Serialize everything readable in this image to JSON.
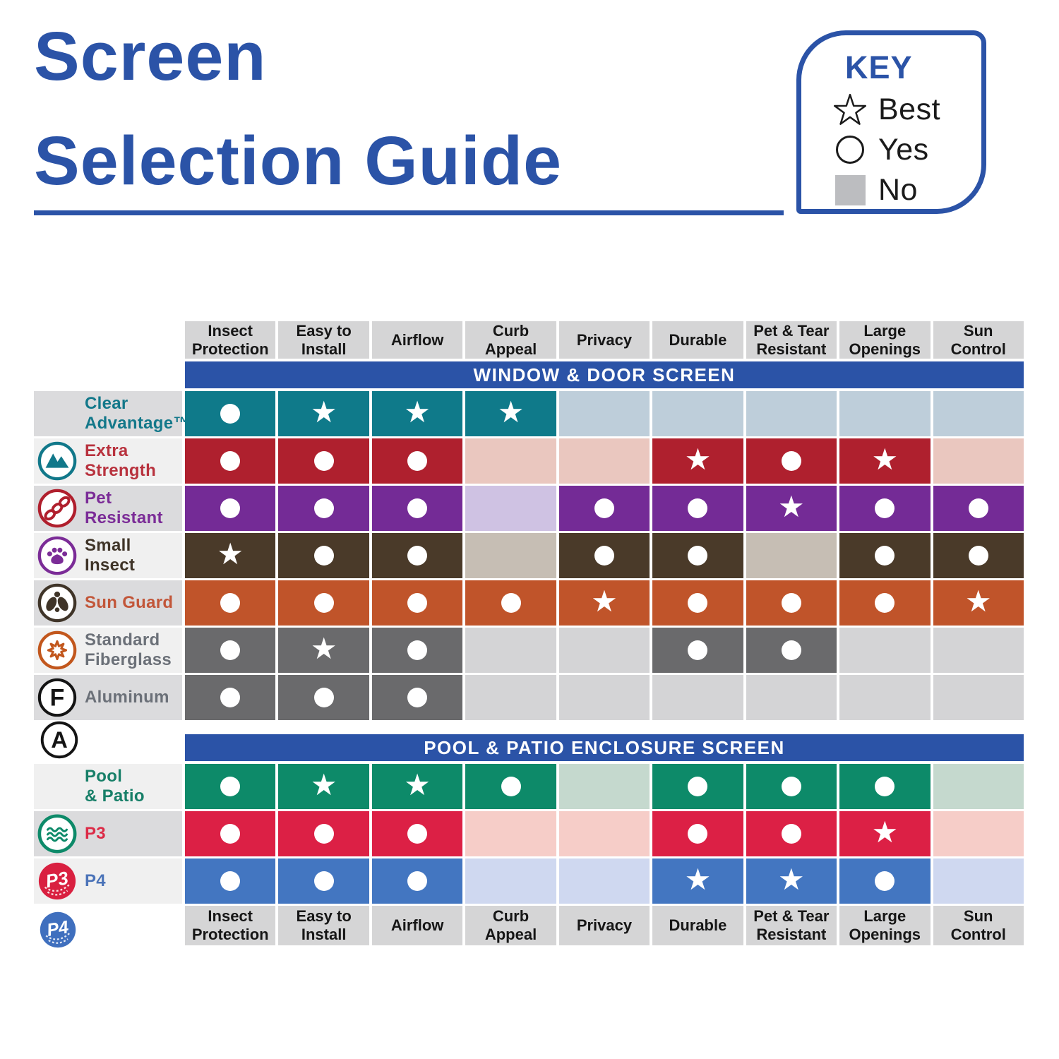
{
  "title": {
    "line1": "Screen",
    "line2": "Selection Guide"
  },
  "key": {
    "heading": "KEY",
    "items": [
      {
        "symbol": "star-outline",
        "label": "Best"
      },
      {
        "symbol": "circle-outline",
        "label": "Yes"
      },
      {
        "symbol": "gray-square",
        "label": "No"
      }
    ]
  },
  "icons": {
    "row_icons": {
      "extra-strength": "mountains",
      "pet-resistant": "chain-links",
      "small-insect": "paw-print",
      "sun-guard": "fly",
      "standard-fiberglass": "starburst",
      "aluminum": "letter-f",
      "p3": "water-waves",
      "p4": "p3-ball"
    },
    "floating": [
      "letter-a",
      "p4-ball"
    ],
    "cell_symbols": {
      "best": "white star",
      "yes": "white circle",
      "no": "tinted empty cell"
    }
  },
  "colors": {
    "brand_blue": "#2B53A7",
    "header_gray": "#D5D5D6",
    "key_square_gray": "#BCBDC0"
  },
  "chart_data": {
    "type": "table",
    "title": "Screen Selection Guide",
    "legend": {
      "star": "Best",
      "circle": "Yes",
      "gray_square": "No"
    },
    "columns": [
      "Insect\nProtection",
      "Easy to\nInstall",
      "Airflow",
      "Curb\nAppeal",
      "Privacy",
      "Durable",
      "Pet & Tear\nResistant",
      "Large\nOpenings",
      "Sun\nControl"
    ],
    "sections": [
      {
        "header": "WINDOW & DOOR SCREEN",
        "rows": [
          {
            "label": "Clear\nAdvantage™",
            "icon": null,
            "colors": {
              "on": "#0F7A8A",
              "off": "#BECEDA",
              "label": "#13788A"
            },
            "cells": [
              "yes",
              "best",
              "best",
              "best",
              "no",
              "no",
              "no",
              "no",
              "no"
            ]
          },
          {
            "label": "Extra\nStrength",
            "icon": "mountains",
            "colors": {
              "on": "#AF202E",
              "off": "#EAC7BF",
              "label": "#B8323E"
            },
            "cells": [
              "yes",
              "yes",
              "yes",
              "no",
              "no",
              "best",
              "yes",
              "best",
              "no"
            ]
          },
          {
            "label": "Pet\nResistant",
            "icon": "chain-links",
            "colors": {
              "on": "#742B96",
              "off": "#CFC2E3",
              "label": "#7B2C97"
            },
            "cells": [
              "yes",
              "yes",
              "yes",
              "no",
              "yes",
              "yes",
              "best",
              "yes",
              "yes"
            ]
          },
          {
            "label": "Small\nInsect",
            "icon": "paw-print",
            "colors": {
              "on": "#4A3A29",
              "off": "#C6BEB4",
              "label": "#3F3428"
            },
            "cells": [
              "best",
              "yes",
              "yes",
              "no",
              "yes",
              "yes",
              "no",
              "yes",
              "yes"
            ]
          },
          {
            "label": "Sun Guard",
            "icon": "fly",
            "colors": {
              "on": "#C0542A",
              "off": null,
              "label": "#C25639"
            },
            "cells": [
              "yes",
              "yes",
              "yes",
              "yes",
              "best",
              "yes",
              "yes",
              "yes",
              "best"
            ]
          },
          {
            "label": "Standard\nFiberglass",
            "icon": "starburst",
            "colors": {
              "on": "#6A6A6C",
              "off": "#D4D4D6",
              "label": "#6B7078"
            },
            "cells": [
              "yes",
              "best",
              "yes",
              "no",
              "no",
              "yes",
              "yes",
              "no",
              "no"
            ]
          },
          {
            "label": "Aluminum",
            "icon": "letter-f",
            "colors": {
              "on": "#6A6A6C",
              "off": "#D4D4D6",
              "label": "#6B7078"
            },
            "cells": [
              "yes",
              "yes",
              "yes",
              "no",
              "no",
              "no",
              "no",
              "no",
              "no"
            ]
          }
        ]
      },
      {
        "header": "POOL & PATIO ENCLOSURE SCREEN",
        "rows": [
          {
            "label": "Pool\n& Patio",
            "icon": null,
            "colors": {
              "on": "#0D8A69",
              "off": "#C5D9CE",
              "label": "#177F68"
            },
            "cells": [
              "yes",
              "best",
              "best",
              "yes",
              "no",
              "yes",
              "yes",
              "yes",
              "no"
            ]
          },
          {
            "label": "P3",
            "icon": "water-waves",
            "colors": {
              "on": "#DC2045",
              "off": "#F6CDC8",
              "label": "#DC2B47"
            },
            "cells": [
              "yes",
              "yes",
              "yes",
              "no",
              "no",
              "yes",
              "yes",
              "best",
              "no"
            ]
          },
          {
            "label": "P4",
            "icon": "p3-ball",
            "colors": {
              "on": "#4376C1",
              "off": "#CFD8F0",
              "label": "#4B73B8"
            },
            "cells": [
              "yes",
              "yes",
              "yes",
              "no",
              "no",
              "best",
              "best",
              "yes",
              "no"
            ]
          }
        ]
      }
    ]
  }
}
